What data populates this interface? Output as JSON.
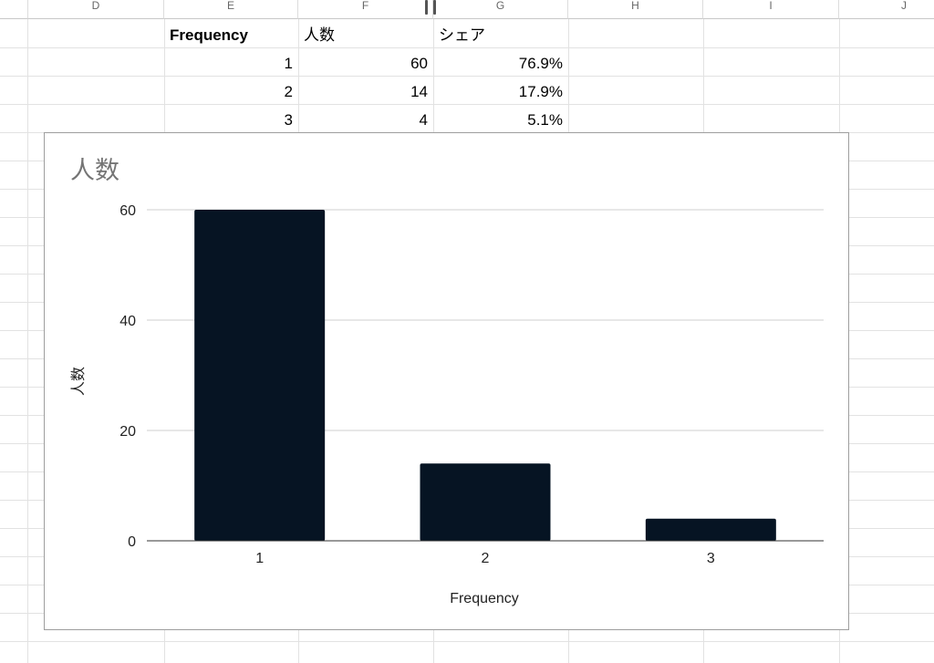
{
  "columns": [
    "D",
    "E",
    "F",
    "G",
    "H",
    "I",
    "J"
  ],
  "table": {
    "headers": [
      "Frequency",
      "人数",
      "シェア"
    ],
    "rows": [
      [
        "1",
        "60",
        "76.9%"
      ],
      [
        "2",
        "14",
        "17.9%"
      ],
      [
        "3",
        "4",
        "5.1%"
      ]
    ]
  },
  "chart_data": {
    "type": "bar",
    "title": "人数",
    "categories": [
      "1",
      "2",
      "3"
    ],
    "values": [
      60,
      14,
      4
    ],
    "xlabel": "Frequency",
    "ylabel": "人数",
    "ylim": [
      0,
      60
    ],
    "yticks": [
      0,
      20,
      40,
      60
    ],
    "grid": true,
    "bar_color": "#061423"
  }
}
